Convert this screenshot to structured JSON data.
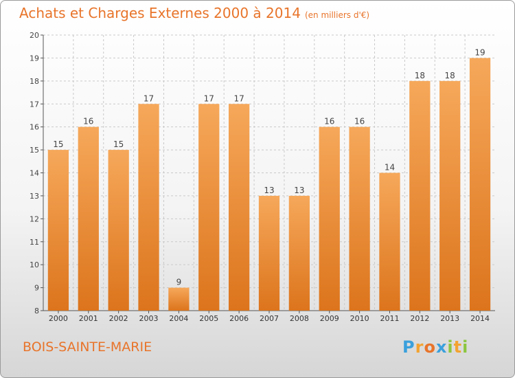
{
  "title": "Achats et Charges Externes 2000 à 2014",
  "unit": "(en milliers d'€)",
  "commune": "BOIS-SAINTE-MARIE",
  "logo": {
    "letters": [
      "P",
      "r",
      "o",
      "x",
      "i",
      "t",
      "i"
    ],
    "colors": [
      "#3aa0dc",
      "#f3a331",
      "#e8742a",
      "#3aa0dc",
      "#8cc63f",
      "#f3a331",
      "#8cc63f"
    ]
  },
  "colors": {
    "bar_top": "#f6a85a",
    "bar_bottom": "#dc741c",
    "text": "#e8742a"
  },
  "chart_data": {
    "type": "bar",
    "categories": [
      "2000",
      "2001",
      "2002",
      "2003",
      "2004",
      "2005",
      "2006",
      "2007",
      "2008",
      "2009",
      "2010",
      "2011",
      "2012",
      "2013",
      "2014"
    ],
    "values": [
      15,
      16,
      15,
      17,
      9,
      17,
      17,
      13,
      13,
      16,
      16,
      14,
      18,
      18,
      19
    ],
    "ylim": [
      8,
      20
    ],
    "yticks": [
      8,
      9,
      10,
      11,
      12,
      13,
      14,
      15,
      16,
      17,
      18,
      19,
      20
    ],
    "grid": true
  }
}
